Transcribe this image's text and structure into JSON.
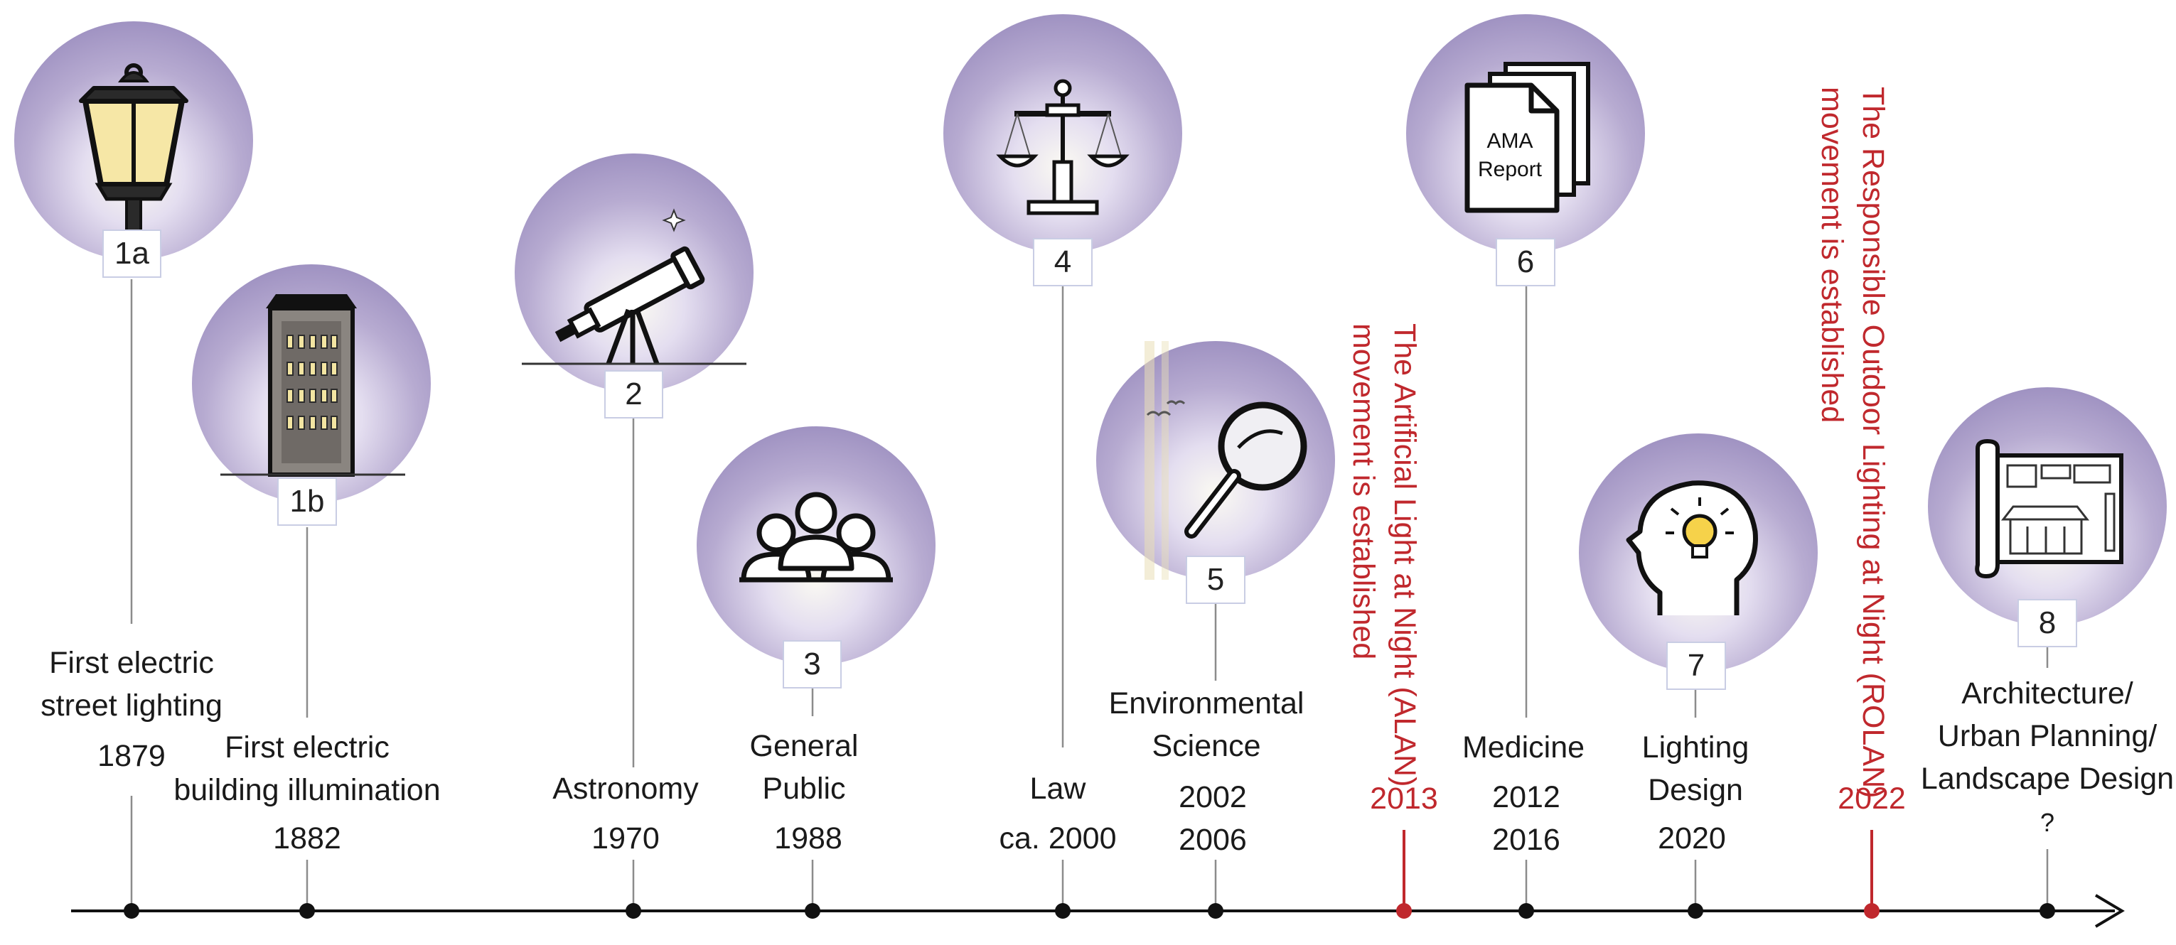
{
  "colors": {
    "accent_red": "#c0282d",
    "circle_purple": "#8a7cb4",
    "axis": "#111111",
    "box_border": "#c9cde4"
  },
  "milestones": [
    {
      "id": "1a",
      "label_lines": [
        "First electric",
        "street lighting"
      ],
      "year": "1879",
      "icon": "street-lamp-icon"
    },
    {
      "id": "1b",
      "label_lines": [
        "First electric",
        "building illumination"
      ],
      "year": "1882",
      "icon": "lit-building-icon"
    },
    {
      "id": "2",
      "label_lines": [
        "Astronomy"
      ],
      "year": "1970",
      "icon": "telescope-icon"
    },
    {
      "id": "3",
      "label_lines": [
        "General",
        "Public"
      ],
      "year": "1988",
      "icon": "people-group-icon"
    },
    {
      "id": "4",
      "label_lines": [
        "Law"
      ],
      "year": "ca. 2000",
      "icon": "scales-icon"
    },
    {
      "id": "5",
      "label_lines": [
        "Environmental",
        "Science"
      ],
      "year_lines": [
        "2002",
        "2006"
      ],
      "icon": "magnifier-icon"
    },
    {
      "id": "6",
      "label_lines": [
        "Medicine"
      ],
      "year_lines": [
        "2012",
        "2016"
      ],
      "icon": "report-documents-icon",
      "doc_text": [
        "AMA",
        "Report"
      ]
    },
    {
      "id": "7",
      "label_lines": [
        "Lighting",
        "Design"
      ],
      "year": "2020",
      "icon": "head-lightbulb-icon"
    },
    {
      "id": "8",
      "label_lines": [
        "Architecture/",
        "Urban Planning/",
        "Landscape Design"
      ],
      "year": "?",
      "icon": "blueprint-icon"
    }
  ],
  "events": [
    {
      "year": "2013",
      "text_lines": [
        "The Artificial Light at Night (ALAN)",
        "movement is established"
      ]
    },
    {
      "year": "2022",
      "text_lines": [
        "The Responsible Outdoor Lighting at Night (ROLAN)",
        "movement is established"
      ]
    }
  ]
}
